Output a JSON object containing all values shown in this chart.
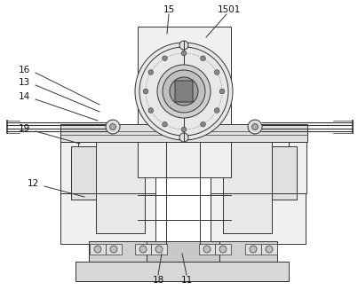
{
  "bg_color": "#ffffff",
  "line_color": "#333333",
  "fill_gray": "#e8e8e8",
  "fill_mid": "#d0d0d0",
  "fill_dark": "#b8b8b8",
  "fill_white": "#f5f5f5"
}
